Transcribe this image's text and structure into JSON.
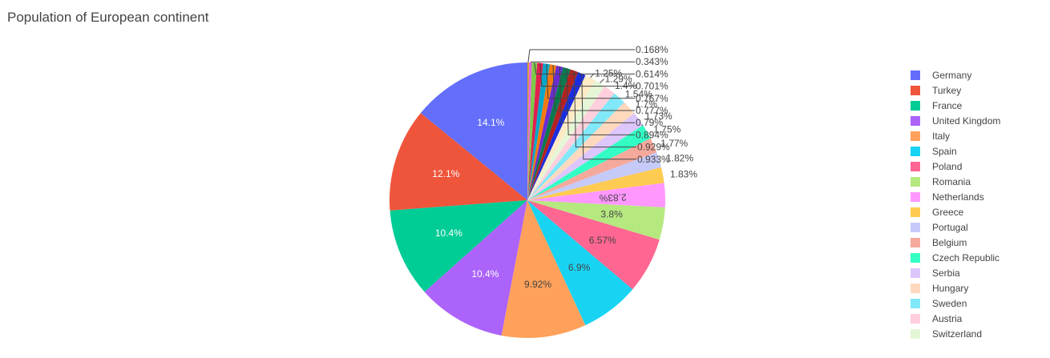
{
  "chart_data": {
    "type": "pie",
    "title": "Population of European continent",
    "legend_position": "right",
    "slices": [
      {
        "name": "Germany",
        "percent": 14.1,
        "label": "14.1%",
        "color": "#636efa"
      },
      {
        "name": "Turkey",
        "percent": 12.1,
        "label": "12.1%",
        "color": "#EF553B"
      },
      {
        "name": "France",
        "percent": 10.4,
        "label": "10.4%",
        "color": "#00cc96"
      },
      {
        "name": "United Kingdom",
        "percent": 10.4,
        "label": "10.4%",
        "color": "#ab63fa"
      },
      {
        "name": "Italy",
        "percent": 9.92,
        "label": "9.92%",
        "color": "#FFA15A"
      },
      {
        "name": "Spain",
        "percent": 6.9,
        "label": "6.9%",
        "color": "#19d3f3"
      },
      {
        "name": "Poland",
        "percent": 6.57,
        "label": "6.57%",
        "color": "#FF6692"
      },
      {
        "name": "Romania",
        "percent": 3.8,
        "label": "3.8%",
        "color": "#B6E880"
      },
      {
        "name": "Netherlands",
        "percent": 2.83,
        "label": "2.83%",
        "color": "#FF97FF"
      },
      {
        "name": "Greece",
        "percent": 1.83,
        "label": "1.83%",
        "color": "#FECB52"
      },
      {
        "name": "Portugal",
        "percent": 1.82,
        "label": "1.82%",
        "color": "#c6caf8"
      },
      {
        "name": "Belgium",
        "percent": 1.77,
        "label": "1.77%",
        "color": "#f5a99c"
      },
      {
        "name": "Czech Republic",
        "percent": 1.75,
        "label": "1.75%",
        "color": "#33ffc4"
      },
      {
        "name": "Serbia",
        "percent": 1.73,
        "label": "1.73%",
        "color": "#ddc6fc"
      },
      {
        "name": "Hungary",
        "percent": 1.7,
        "label": "1.7%",
        "color": "#ffd9bd"
      },
      {
        "name": "Sweden",
        "percent": 1.54,
        "label": "1.54%",
        "color": "#80e8f8"
      },
      {
        "name": "Austria",
        "percent": 1.4,
        "label": "1.4%",
        "color": "#ffcfdd"
      },
      {
        "name": "Switzerland",
        "percent": 1.29,
        "label": "1.29%",
        "color": "#e5f6d6"
      },
      {
        "name": "",
        "percent": 1.25,
        "label": "1.25%",
        "color": "#ffeac6"
      },
      {
        "name": "",
        "percent": 0.933,
        "label": "0.933%",
        "color": "#1a2ce0"
      },
      {
        "name": "",
        "percent": 0.929,
        "label": "0.929%",
        "color": "#b22222"
      },
      {
        "name": "",
        "percent": 0.894,
        "label": "0.894%",
        "color": "#0a7a4e"
      },
      {
        "name": "",
        "percent": 0.79,
        "label": "0.79%",
        "color": "#6a2bd0"
      },
      {
        "name": "",
        "percent": 0.777,
        "label": "0.777%",
        "color": "#f27a10"
      },
      {
        "name": "",
        "percent": 0.767,
        "label": "0.767%",
        "color": "#0aa6c9"
      },
      {
        "name": "",
        "percent": 0.701,
        "label": "0.701%",
        "color": "#e0204f"
      },
      {
        "name": "",
        "percent": 0.614,
        "label": "0.614%",
        "color": "#7fc94a"
      },
      {
        "name": "",
        "percent": 0.343,
        "label": "0.343%",
        "color": "#e863e8"
      },
      {
        "name": "",
        "percent": 0.168,
        "label": "0.168%",
        "color": "#d4a017"
      }
    ]
  }
}
